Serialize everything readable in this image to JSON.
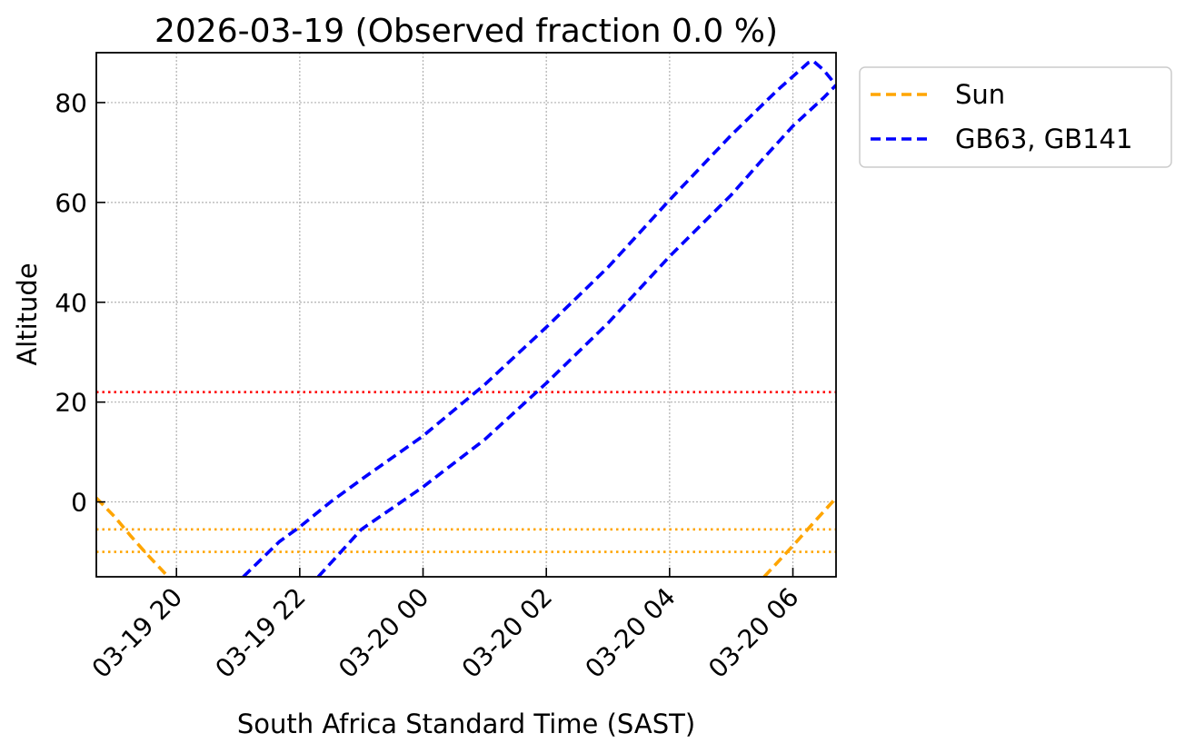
{
  "chart_data": {
    "type": "line",
    "title": "2026-03-19 (Observed fraction 0.0 %)",
    "xlabel": "South Africa Standard Time (SAST)",
    "ylabel": "Altitude",
    "x_unit": "hours",
    "xlim": [
      "2026-03-19 18:42",
      "2026-03-20 06:42"
    ],
    "ylim": [
      -15,
      90
    ],
    "yticks": [
      0,
      20,
      40,
      60,
      80
    ],
    "xticks": [
      {
        "t": "2026-03-19 20:00",
        "label": "03-19 20"
      },
      {
        "t": "2026-03-19 22:00",
        "label": "03-19 22"
      },
      {
        "t": "2026-03-20 00:00",
        "label": "03-20 00"
      },
      {
        "t": "2026-03-20 02:00",
        "label": "03-20 02"
      },
      {
        "t": "2026-03-20 04:00",
        "label": "03-20 04"
      },
      {
        "t": "2026-03-20 06:00",
        "label": "03-20 06"
      }
    ],
    "grid": true,
    "legend_position": "outside-top-right",
    "series": [
      {
        "name": "Sun",
        "color": "#FFA500",
        "style": "dashed",
        "segments": [
          [
            [
              "2026-03-19 18:42",
              0.8
            ],
            [
              "2026-03-19 19:00",
              -3.0
            ],
            [
              "2026-03-19 19:15",
              -6.7
            ],
            [
              "2026-03-19 19:30",
              -10.2
            ],
            [
              "2026-03-19 19:52",
              -15.0
            ]
          ],
          [
            [
              "2026-03-20 05:32",
              -15.0
            ],
            [
              "2026-03-20 06:00",
              -8.8
            ],
            [
              "2026-03-20 06:20",
              -4.2
            ],
            [
              "2026-03-20 06:42",
              0.8
            ]
          ]
        ]
      },
      {
        "name": "GB63, GB141",
        "color": "#0000FF",
        "style": "dashed",
        "segments": [
          [
            [
              "2026-03-19 21:05",
              -15.0
            ],
            [
              "2026-03-19 21:40",
              -8.0
            ],
            [
              "2026-03-19 22:00",
              -5.0
            ],
            [
              "2026-03-19 22:30",
              0.0
            ],
            [
              "2026-03-19 23:00",
              4.5
            ],
            [
              "2026-03-20 00:00",
              13.2
            ],
            [
              "2026-03-20 01:00",
              23.5
            ],
            [
              "2026-03-20 02:00",
              35.0
            ],
            [
              "2026-03-20 03:00",
              47.0
            ],
            [
              "2026-03-20 04:00",
              60.5
            ],
            [
              "2026-03-20 05:00",
              73.5
            ],
            [
              "2026-03-20 05:45",
              82.5
            ],
            [
              "2026-03-20 06:15",
              88.0
            ],
            [
              "2026-03-20 06:20",
              88.3
            ],
            [
              "2026-03-20 06:30",
              86.5
            ],
            [
              "2026-03-20 06:42",
              83.5
            ]
          ],
          [
            [
              "2026-03-19 22:18",
              -15.0
            ],
            [
              "2026-03-19 23:00",
              -5.5
            ],
            [
              "2026-03-20 00:00",
              3.0
            ],
            [
              "2026-03-20 01:00",
              12.5
            ],
            [
              "2026-03-20 02:00",
              23.8
            ],
            [
              "2026-03-20 03:00",
              35.8
            ],
            [
              "2026-03-20 04:00",
              49.2
            ],
            [
              "2026-03-20 05:00",
              61.5
            ],
            [
              "2026-03-20 05:30",
              68.5
            ],
            [
              "2026-03-20 06:00",
              75.3
            ],
            [
              "2026-03-20 06:30",
              81.0
            ],
            [
              "2026-03-20 06:42",
              83.5
            ]
          ]
        ]
      }
    ],
    "reference_lines": [
      {
        "y": 22,
        "color": "#FF0000",
        "style": "dotted"
      },
      {
        "y": -5.5,
        "color": "#FFA500",
        "style": "dotted"
      },
      {
        "y": -10,
        "color": "#FFA500",
        "style": "dotted"
      }
    ]
  }
}
